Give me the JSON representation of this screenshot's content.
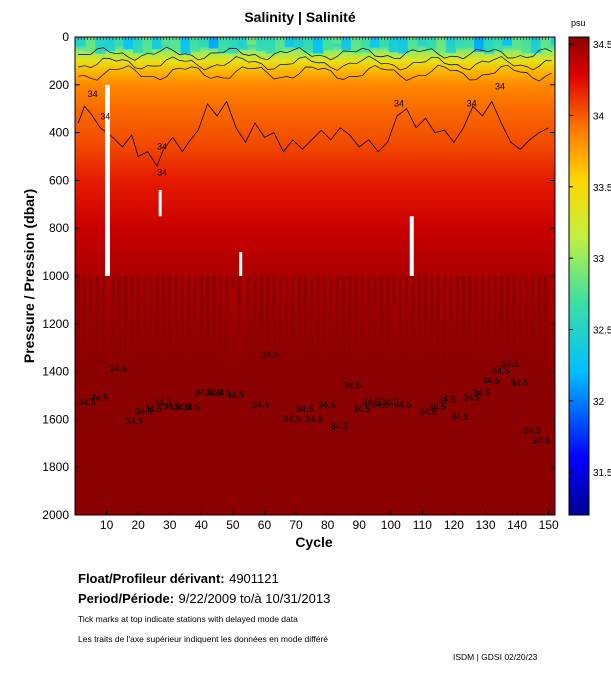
{
  "chart_data": {
    "type": "heatmap",
    "title": "Salinity | Salinité",
    "xlabel": "Cycle",
    "ylabel": "Pressure / Pression (dbar)",
    "xlim": [
      0,
      152
    ],
    "ylim": [
      0,
      2000
    ],
    "x_ticks": [
      10,
      20,
      30,
      40,
      50,
      60,
      70,
      80,
      90,
      100,
      110,
      120,
      130,
      140,
      150
    ],
    "y_ticks": [
      0,
      200,
      400,
      600,
      800,
      1000,
      1200,
      1400,
      1600,
      1800,
      2000
    ],
    "colorbar": {
      "unit": "psu",
      "range": [
        31.2,
        34.55
      ],
      "ticks": [
        31.5,
        32,
        32.5,
        33,
        33.5,
        34,
        34.5
      ],
      "tick_labels": [
        "31.5",
        "32",
        "32.5",
        "33",
        "33.5",
        "34",
        "34.5"
      ]
    },
    "salinity_profile": [
      {
        "pressure": 0,
        "salinity": 32.3
      },
      {
        "pressure": 30,
        "salinity": 32.5
      },
      {
        "pressure": 60,
        "salinity": 33.0
      },
      {
        "pressure": 100,
        "salinity": 33.4
      },
      {
        "pressure": 150,
        "salinity": 33.7
      },
      {
        "pressure": 200,
        "salinity": 33.85
      },
      {
        "pressure": 300,
        "salinity": 33.95
      },
      {
        "pressure": 450,
        "salinity": 34.05
      },
      {
        "pressure": 600,
        "salinity": 34.2
      },
      {
        "pressure": 800,
        "salinity": 34.35
      },
      {
        "pressure": 1000,
        "salinity": 34.45
      },
      {
        "pressure": 1400,
        "salinity": 34.55
      },
      {
        "pressure": 2000,
        "salinity": 34.6
      }
    ],
    "contour_34": [
      {
        "cycle": 1,
        "pressure": 360
      },
      {
        "cycle": 3,
        "pressure": 290
      },
      {
        "cycle": 5,
        "pressure": 320
      },
      {
        "cycle": 8,
        "pressure": 380
      },
      {
        "cycle": 12,
        "pressure": 420
      },
      {
        "cycle": 15,
        "pressure": 460
      },
      {
        "cycle": 18,
        "pressure": 410
      },
      {
        "cycle": 20,
        "pressure": 500
      },
      {
        "cycle": 23,
        "pressure": 480
      },
      {
        "cycle": 26,
        "pressure": 540
      },
      {
        "cycle": 28,
        "pressure": 470
      },
      {
        "cycle": 31,
        "pressure": 420
      },
      {
        "cycle": 34,
        "pressure": 480
      },
      {
        "cycle": 36,
        "pressure": 440
      },
      {
        "cycle": 39,
        "pressure": 390
      },
      {
        "cycle": 42,
        "pressure": 280
      },
      {
        "cycle": 45,
        "pressure": 330
      },
      {
        "cycle": 48,
        "pressure": 270
      },
      {
        "cycle": 51,
        "pressure": 380
      },
      {
        "cycle": 54,
        "pressure": 440
      },
      {
        "cycle": 57,
        "pressure": 360
      },
      {
        "cycle": 60,
        "pressure": 420
      },
      {
        "cycle": 63,
        "pressure": 400
      },
      {
        "cycle": 66,
        "pressure": 480
      },
      {
        "cycle": 69,
        "pressure": 430
      },
      {
        "cycle": 72,
        "pressure": 470
      },
      {
        "cycle": 75,
        "pressure": 430
      },
      {
        "cycle": 78,
        "pressure": 390
      },
      {
        "cycle": 81,
        "pressure": 430
      },
      {
        "cycle": 84,
        "pressure": 380
      },
      {
        "cycle": 87,
        "pressure": 410
      },
      {
        "cycle": 90,
        "pressure": 460
      },
      {
        "cycle": 93,
        "pressure": 430
      },
      {
        "cycle": 96,
        "pressure": 480
      },
      {
        "cycle": 99,
        "pressure": 440
      },
      {
        "cycle": 102,
        "pressure": 330
      },
      {
        "cycle": 105,
        "pressure": 300
      },
      {
        "cycle": 108,
        "pressure": 380
      },
      {
        "cycle": 111,
        "pressure": 340
      },
      {
        "cycle": 114,
        "pressure": 400
      },
      {
        "cycle": 117,
        "pressure": 390
      },
      {
        "cycle": 120,
        "pressure": 440
      },
      {
        "cycle": 123,
        "pressure": 380
      },
      {
        "cycle": 126,
        "pressure": 290
      },
      {
        "cycle": 129,
        "pressure": 330
      },
      {
        "cycle": 132,
        "pressure": 270
      },
      {
        "cycle": 135,
        "pressure": 360
      },
      {
        "cycle": 138,
        "pressure": 440
      },
      {
        "cycle": 141,
        "pressure": 470
      },
      {
        "cycle": 144,
        "pressure": 430
      },
      {
        "cycle": 147,
        "pressure": 400
      },
      {
        "cycle": 150,
        "pressure": 380
      }
    ],
    "contour_labels_34": [
      {
        "cycle": 4,
        "pressure": 250
      },
      {
        "cycle": 8,
        "pressure": 345
      },
      {
        "cycle": 26,
        "pressure": 470
      },
      {
        "cycle": 26,
        "pressure": 580
      },
      {
        "cycle": 101,
        "pressure": 290
      },
      {
        "cycle": 124,
        "pressure": 290
      },
      {
        "cycle": 133,
        "pressure": 220
      }
    ],
    "deep_profile_pressures": [
      {
        "cycle": 1,
        "pressure": 1800
      },
      {
        "cycle": 3,
        "pressure": 1600
      },
      {
        "cycle": 5,
        "pressure": 1900
      },
      {
        "cycle": 7,
        "pressure": 1720
      },
      {
        "cycle": 9,
        "pressure": 1450
      },
      {
        "cycle": 12,
        "pressure": 2000
      },
      {
        "cycle": 14,
        "pressure": 2000
      },
      {
        "cycle": 16,
        "pressure": 2000
      },
      {
        "cycle": 18,
        "pressure": 2000
      },
      {
        "cycle": 20,
        "pressure": 2000
      },
      {
        "cycle": 22,
        "pressure": 2000
      },
      {
        "cycle": 24,
        "pressure": 2000
      },
      {
        "cycle": 26,
        "pressure": 2000
      },
      {
        "cycle": 28,
        "pressure": 2000
      },
      {
        "cycle": 30,
        "pressure": 2000
      },
      {
        "cycle": 32,
        "pressure": 2000
      },
      {
        "cycle": 34,
        "pressure": 2000
      },
      {
        "cycle": 36,
        "pressure": 2000
      },
      {
        "cycle": 38,
        "pressure": 2000
      },
      {
        "cycle": 40,
        "pressure": 2000
      },
      {
        "cycle": 42,
        "pressure": 2000
      },
      {
        "cycle": 44,
        "pressure": 2000
      },
      {
        "cycle": 46,
        "pressure": 2000
      },
      {
        "cycle": 48,
        "pressure": 2000
      },
      {
        "cycle": 50,
        "pressure": 1050
      },
      {
        "cycle": 52,
        "pressure": 1240
      },
      {
        "cycle": 55,
        "pressure": 1600
      },
      {
        "cycle": 57,
        "pressure": 2000
      },
      {
        "cycle": 59,
        "pressure": 2000
      },
      {
        "cycle": 61,
        "pressure": 2000
      },
      {
        "cycle": 63,
        "pressure": 2000
      },
      {
        "cycle": 65,
        "pressure": 2000
      },
      {
        "cycle": 67,
        "pressure": 2000
      },
      {
        "cycle": 69,
        "pressure": 2000
      },
      {
        "cycle": 71,
        "pressure": 2000
      },
      {
        "cycle": 73,
        "pressure": 2000
      },
      {
        "cycle": 75,
        "pressure": 2000
      },
      {
        "cycle": 77,
        "pressure": 2000
      },
      {
        "cycle": 79,
        "pressure": 2000
      },
      {
        "cycle": 81,
        "pressure": 2000
      },
      {
        "cycle": 83,
        "pressure": 2000
      },
      {
        "cycle": 85,
        "pressure": 2000
      },
      {
        "cycle": 87,
        "pressure": 2000
      },
      {
        "cycle": 89,
        "pressure": 2000
      },
      {
        "cycle": 91,
        "pressure": 2000
      },
      {
        "cycle": 93,
        "pressure": 2000
      },
      {
        "cycle": 95,
        "pressure": 2000
      },
      {
        "cycle": 97,
        "pressure": 2000
      },
      {
        "cycle": 99,
        "pressure": 2000
      },
      {
        "cycle": 101,
        "pressure": 1120
      },
      {
        "cycle": 103,
        "pressure": 1450
      },
      {
        "cycle": 105,
        "pressure": 1980
      },
      {
        "cycle": 107,
        "pressure": 2000
      },
      {
        "cycle": 109,
        "pressure": 1880
      },
      {
        "cycle": 111,
        "pressure": 1900
      },
      {
        "cycle": 113,
        "pressure": 1960
      },
      {
        "cycle": 115,
        "pressure": 2000
      },
      {
        "cycle": 117,
        "pressure": 2000
      },
      {
        "cycle": 119,
        "pressure": 2000
      },
      {
        "cycle": 121,
        "pressure": 2000
      },
      {
        "cycle": 123,
        "pressure": 2000
      },
      {
        "cycle": 125,
        "pressure": 2000
      },
      {
        "cycle": 127,
        "pressure": 2000
      },
      {
        "cycle": 129,
        "pressure": 2000
      },
      {
        "cycle": 131,
        "pressure": 2000
      },
      {
        "cycle": 133,
        "pressure": 2000
      },
      {
        "cycle": 135,
        "pressure": 2000
      },
      {
        "cycle": 137,
        "pressure": 2000
      },
      {
        "cycle": 139,
        "pressure": 2000
      },
      {
        "cycle": 141,
        "pressure": 2000
      },
      {
        "cycle": 143,
        "pressure": 2000
      },
      {
        "cycle": 145,
        "pressure": 2000
      },
      {
        "cycle": 147,
        "pressure": 2000
      },
      {
        "cycle": 149,
        "pressure": 1950
      }
    ],
    "contour_labels_345": [
      {
        "cycle": 1,
        "pressure": 1540
      },
      {
        "cycle": 5,
        "pressure": 1520
      },
      {
        "cycle": 11,
        "pressure": 1400
      },
      {
        "cycle": 16,
        "pressure": 1620
      },
      {
        "cycle": 19,
        "pressure": 1580
      },
      {
        "cycle": 22,
        "pressure": 1570
      },
      {
        "cycle": 25,
        "pressure": 1540
      },
      {
        "cycle": 28,
        "pressure": 1560
      },
      {
        "cycle": 31,
        "pressure": 1560
      },
      {
        "cycle": 34,
        "pressure": 1560
      },
      {
        "cycle": 38,
        "pressure": 1500
      },
      {
        "cycle": 41,
        "pressure": 1500
      },
      {
        "cycle": 44,
        "pressure": 1500
      },
      {
        "cycle": 48,
        "pressure": 1510
      },
      {
        "cycle": 56,
        "pressure": 1550
      },
      {
        "cycle": 59,
        "pressure": 1340
      },
      {
        "cycle": 66,
        "pressure": 1610
      },
      {
        "cycle": 70,
        "pressure": 1570
      },
      {
        "cycle": 73,
        "pressure": 1610
      },
      {
        "cycle": 77,
        "pressure": 1550
      },
      {
        "cycle": 81,
        "pressure": 1640
      },
      {
        "cycle": 85,
        "pressure": 1470
      },
      {
        "cycle": 88,
        "pressure": 1570
      },
      {
        "cycle": 91,
        "pressure": 1540
      },
      {
        "cycle": 94,
        "pressure": 1550
      },
      {
        "cycle": 97,
        "pressure": 1540
      },
      {
        "cycle": 101,
        "pressure": 1550
      },
      {
        "cycle": 109,
        "pressure": 1580
      },
      {
        "cycle": 112,
        "pressure": 1560
      },
      {
        "cycle": 115,
        "pressure": 1530
      },
      {
        "cycle": 119,
        "pressure": 1600
      },
      {
        "cycle": 123,
        "pressure": 1520
      },
      {
        "cycle": 126,
        "pressure": 1500
      },
      {
        "cycle": 129,
        "pressure": 1450
      },
      {
        "cycle": 132,
        "pressure": 1410
      },
      {
        "cycle": 135,
        "pressure": 1380
      },
      {
        "cycle": 138,
        "pressure": 1460
      },
      {
        "cycle": 142,
        "pressure": 1660
      },
      {
        "cycle": 145,
        "pressure": 1700
      }
    ],
    "contour_label_34_text": "34",
    "contour_label_345_text": "34.5"
  },
  "float_label": "Float/Profileur dérivant:",
  "float_id": "4901121",
  "period_label": "Period/Période:",
  "period_value": "9/22/2009  to/à  10/31/2013",
  "note_en": "Tick marks at top indicate stations with delayed mode data",
  "note_fr": "Les traits de l'axe supérieur indiquent les données en mode différé",
  "credit": "ISDM | GDSI  02/20/23",
  "colors": {
    "contour": "#000000",
    "deep": "#8b0000",
    "axis": "#000000",
    "background": "#ffffff"
  }
}
